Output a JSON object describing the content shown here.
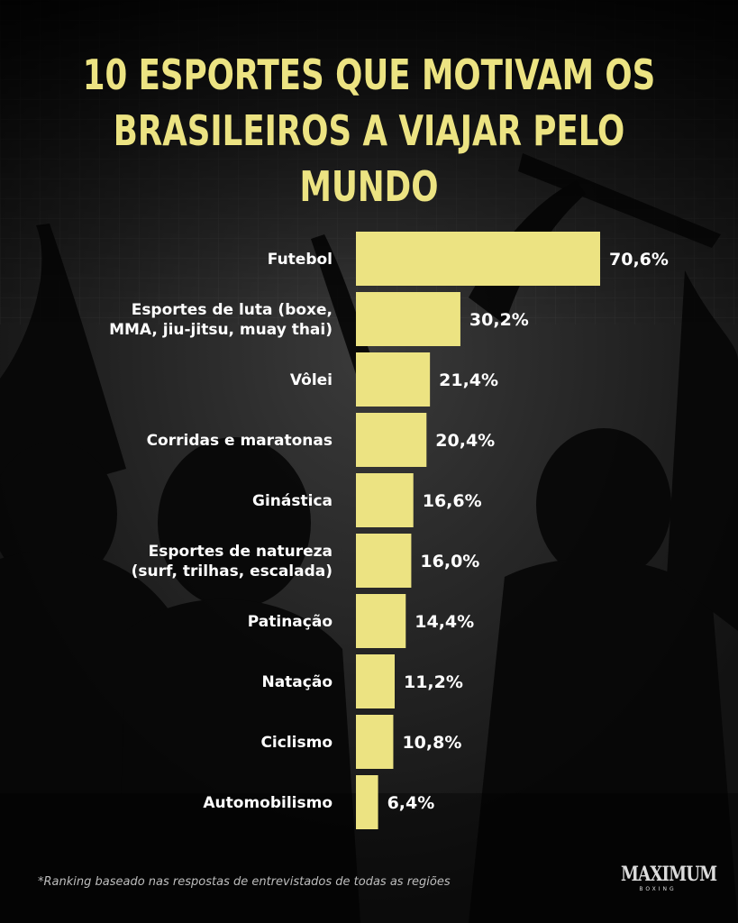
{
  "title_line1": "10 ESPORTES QUE MOTIVAM OS",
  "title_line2": "BRASILEIROS A VIAJAR PELO MUNDO",
  "footnote": "*Ranking baseado nas respostas de entrevistados de todas as regiões",
  "logo": {
    "word": "MAXIMUM",
    "sub": "BOXING"
  },
  "colors": {
    "bar": "#ECE382",
    "title": "#ECE382",
    "label": "#ffffff",
    "background": "#141414"
  },
  "chart_data": {
    "type": "bar",
    "orientation": "horizontal",
    "categories": [
      [
        "Futebol"
      ],
      [
        "Esportes de luta (boxe,",
        "MMA, jiu-jitsu, muay thai)"
      ],
      [
        "Vôlei"
      ],
      [
        "Corridas e maratonas"
      ],
      [
        "Ginástica"
      ],
      [
        "Esportes de natureza",
        "(surf, trilhas, escalada)"
      ],
      [
        "Patinação"
      ],
      [
        "Natação"
      ],
      [
        "Ciclismo"
      ],
      [
        "Automobilismo"
      ]
    ],
    "values": [
      70.6,
      30.2,
      21.4,
      20.4,
      16.6,
      16.0,
      14.4,
      11.2,
      10.8,
      6.4
    ],
    "value_labels": [
      "70,6%",
      "30,2%",
      "21,4%",
      "20,4%",
      "16,6%",
      "16,0%",
      "14,4%",
      "11,2%",
      "10,8%",
      "6,4%"
    ],
    "xlim": [
      0,
      70.6
    ],
    "grid": false,
    "legend": "none"
  }
}
